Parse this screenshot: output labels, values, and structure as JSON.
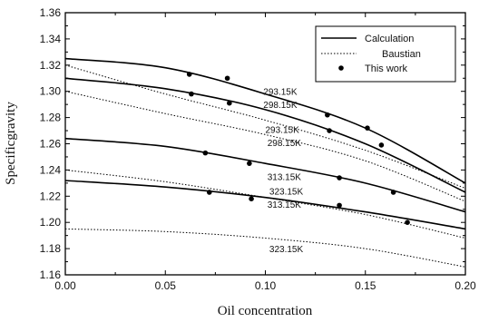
{
  "chart_data": {
    "type": "line",
    "title": "",
    "xlabel": "Oil concentration",
    "ylabel": "Specificgravity",
    "xlim": [
      0.0,
      0.2
    ],
    "ylim": [
      1.16,
      1.36
    ],
    "x_ticks": [
      "0.00",
      "0.05",
      "0.10",
      "0.15",
      "0.20"
    ],
    "x_tick_values": [
      0.0,
      0.05,
      0.1,
      0.15,
      0.2
    ],
    "y_ticks": [
      "1.16",
      "1.18",
      "1.20",
      "1.22",
      "1.24",
      "1.26",
      "1.28",
      "1.30",
      "1.32",
      "1.34",
      "1.36"
    ],
    "y_tick_values": [
      1.16,
      1.18,
      1.2,
      1.22,
      1.24,
      1.26,
      1.28,
      1.3,
      1.32,
      1.34,
      1.36
    ],
    "grid": false,
    "legend": {
      "placement": "top-right",
      "entries": [
        {
          "label": "Calculation",
          "style": "solid"
        },
        {
          "label": "Baustian",
          "style": "dotted"
        },
        {
          "label": "This work",
          "style": "marker"
        }
      ]
    },
    "series": [
      {
        "kind": "calculation",
        "label": "293.15K",
        "x": [
          0,
          0.05,
          0.1,
          0.15,
          0.2
        ],
        "y": [
          1.325,
          1.318,
          1.298,
          1.272,
          1.23
        ]
      },
      {
        "kind": "calculation",
        "label": "298.15K",
        "x": [
          0,
          0.05,
          0.1,
          0.15,
          0.2
        ],
        "y": [
          1.31,
          1.302,
          1.286,
          1.26,
          1.223
        ]
      },
      {
        "kind": "calculation",
        "label": "313.15K",
        "x": [
          0,
          0.05,
          0.1,
          0.15,
          0.2
        ],
        "y": [
          1.264,
          1.258,
          1.245,
          1.23,
          1.208
        ]
      },
      {
        "kind": "calculation",
        "label": "323.15K",
        "x": [
          0,
          0.05,
          0.1,
          0.15,
          0.2
        ],
        "y": [
          1.232,
          1.227,
          1.219,
          1.208,
          1.195
        ]
      },
      {
        "kind": "baustian",
        "label": "293.15K",
        "x": [
          0,
          0.05,
          0.1,
          0.15,
          0.2
        ],
        "y": [
          1.32,
          1.298,
          1.278,
          1.255,
          1.226
        ]
      },
      {
        "kind": "baustian",
        "label": "298.15K",
        "x": [
          0,
          0.05,
          0.1,
          0.15,
          0.2
        ],
        "y": [
          1.3,
          1.283,
          1.267,
          1.247,
          1.216
        ]
      },
      {
        "kind": "baustian",
        "label": "313.15K",
        "x": [
          0,
          0.05,
          0.1,
          0.15,
          0.2
        ],
        "y": [
          1.24,
          1.231,
          1.219,
          1.206,
          1.188
        ]
      },
      {
        "kind": "baustian",
        "label": "323.15K",
        "x": [
          0,
          0.05,
          0.1,
          0.15,
          0.2
        ],
        "y": [
          1.195,
          1.193,
          1.188,
          1.18,
          1.166
        ]
      }
    ],
    "points": [
      {
        "x": 0.062,
        "y": 1.313
      },
      {
        "x": 0.081,
        "y": 1.31
      },
      {
        "x": 0.131,
        "y": 1.282
      },
      {
        "x": 0.151,
        "y": 1.272
      },
      {
        "x": 0.063,
        "y": 1.298
      },
      {
        "x": 0.082,
        "y": 1.291
      },
      {
        "x": 0.132,
        "y": 1.27
      },
      {
        "x": 0.158,
        "y": 1.259
      },
      {
        "x": 0.07,
        "y": 1.253
      },
      {
        "x": 0.092,
        "y": 1.245
      },
      {
        "x": 0.137,
        "y": 1.234
      },
      {
        "x": 0.164,
        "y": 1.223
      },
      {
        "x": 0.072,
        "y": 1.223
      },
      {
        "x": 0.093,
        "y": 1.218
      },
      {
        "x": 0.137,
        "y": 1.213
      },
      {
        "x": 0.171,
        "y": 1.2
      }
    ],
    "annotations": [
      {
        "text": "293.15K",
        "x": 0.099,
        "y": 1.3
      },
      {
        "text": "298.15K",
        "x": 0.099,
        "y": 1.29
      },
      {
        "text": "293.15K",
        "x": 0.1,
        "y": 1.271
      },
      {
        "text": "298.15K",
        "x": 0.101,
        "y": 1.261
      },
      {
        "text": "313.15K",
        "x": 0.101,
        "y": 1.235
      },
      {
        "text": "323.15K",
        "x": 0.102,
        "y": 1.224
      },
      {
        "text": "313.15K",
        "x": 0.101,
        "y": 1.214
      },
      {
        "text": "323.15K",
        "x": 0.102,
        "y": 1.18
      }
    ]
  }
}
